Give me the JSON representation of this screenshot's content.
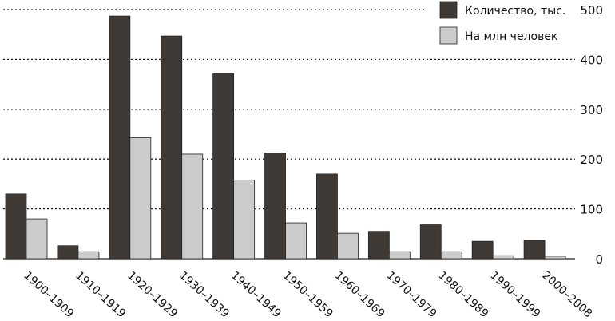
{
  "chart_data": {
    "type": "bar",
    "title": "",
    "xlabel": "",
    "ylabel": "",
    "categories": [
      "1900–1909",
      "1910–1919",
      "1920–1929",
      "1930–1939",
      "1940–1949",
      "1950–1959",
      "1960–1969",
      "1970–1979",
      "1980–1989",
      "1990–1999",
      "2000–2008"
    ],
    "series": [
      {
        "name": "Количество, тыс.",
        "color": "#403a36",
        "values": [
          130,
          26,
          487,
          447,
          371,
          212,
          170,
          55,
          68,
          35,
          37
        ]
      },
      {
        "name": "На млн человек",
        "color": "#cccccc",
        "values": [
          80,
          14,
          243,
          210,
          158,
          72,
          51,
          14,
          14,
          6,
          5
        ]
      }
    ],
    "ylim": [
      0,
      500
    ],
    "yticks": [
      "0",
      "100",
      "200",
      "300",
      "400",
      "500"
    ],
    "y_axis_side": "right",
    "grid": true,
    "legend_placement": "top-right"
  }
}
